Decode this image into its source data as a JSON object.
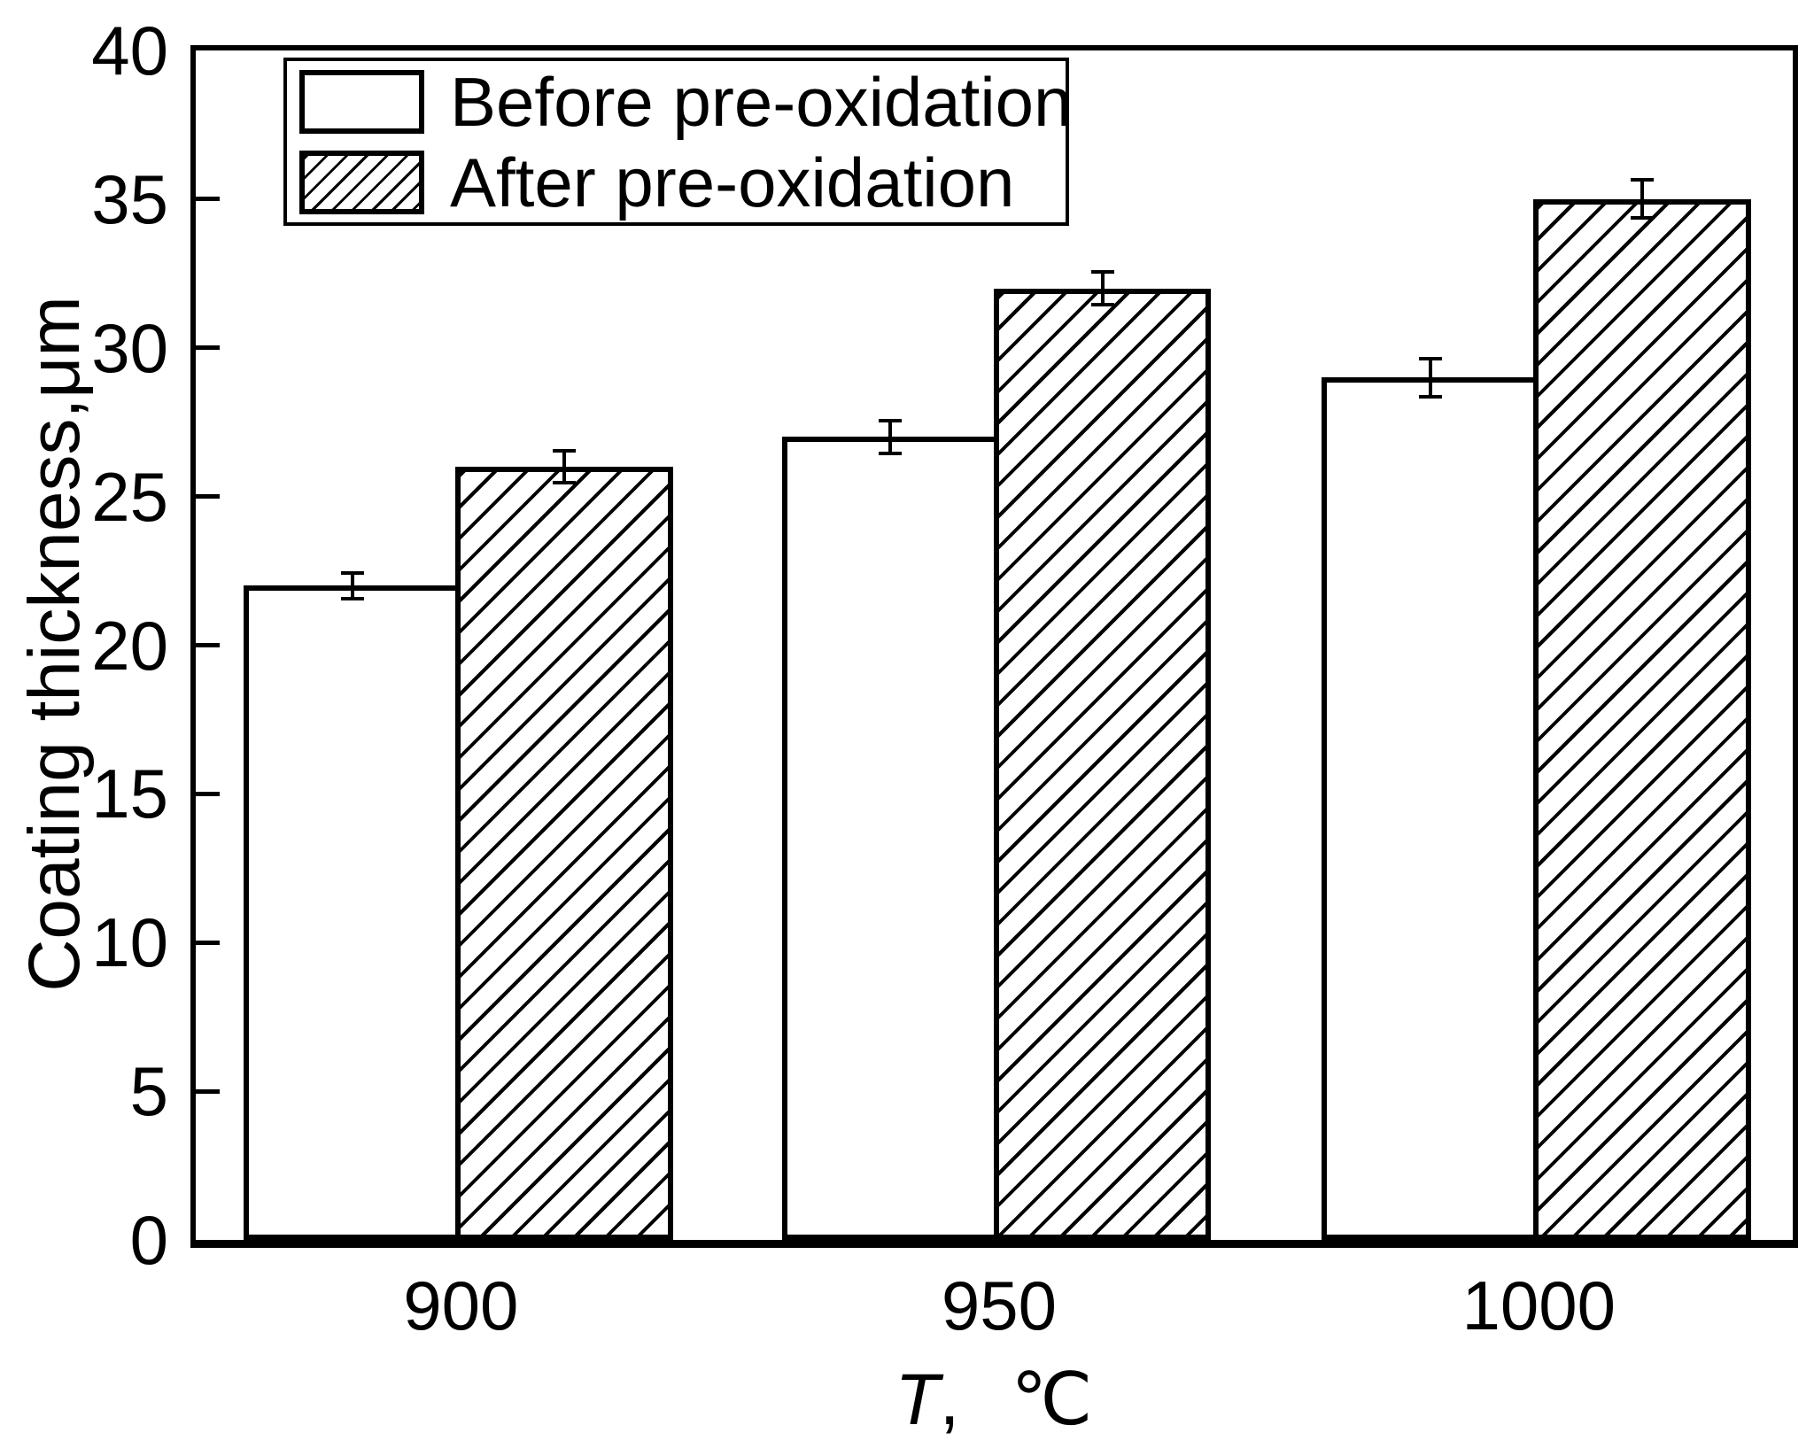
{
  "figure": {
    "x_title": {
      "variable": "T",
      "separator": ",",
      "unit": "℃"
    }
  },
  "chart_data": {
    "type": "bar",
    "title": "",
    "categories": [
      "900",
      "950",
      "1000"
    ],
    "series": [
      {
        "name": "Before pre-oxidation",
        "values": [
          22,
          27,
          29
        ],
        "errors": [
          0.5,
          0.6,
          0.7
        ],
        "fill": "#ffffff",
        "hatch": "none"
      },
      {
        "name": "After pre-oxidation",
        "values": [
          26,
          32,
          35
        ],
        "errors": [
          0.6,
          0.6,
          0.7
        ],
        "fill": "#ffffff",
        "hatch": "diagonal-forward"
      }
    ],
    "xlabel": "T,  ℃",
    "ylabel": "Coating thickness,μm",
    "ylim": [
      0,
      40
    ],
    "ytick_step": 5,
    "x_tick_marks_visible": false,
    "grid": false,
    "legend_position": "upper-left",
    "line_color": "#000000",
    "background_color": "#ffffff",
    "layout": {
      "group_center_frac": [
        0.166,
        0.503,
        0.841
      ],
      "bar_width_frac": 0.136
    }
  }
}
